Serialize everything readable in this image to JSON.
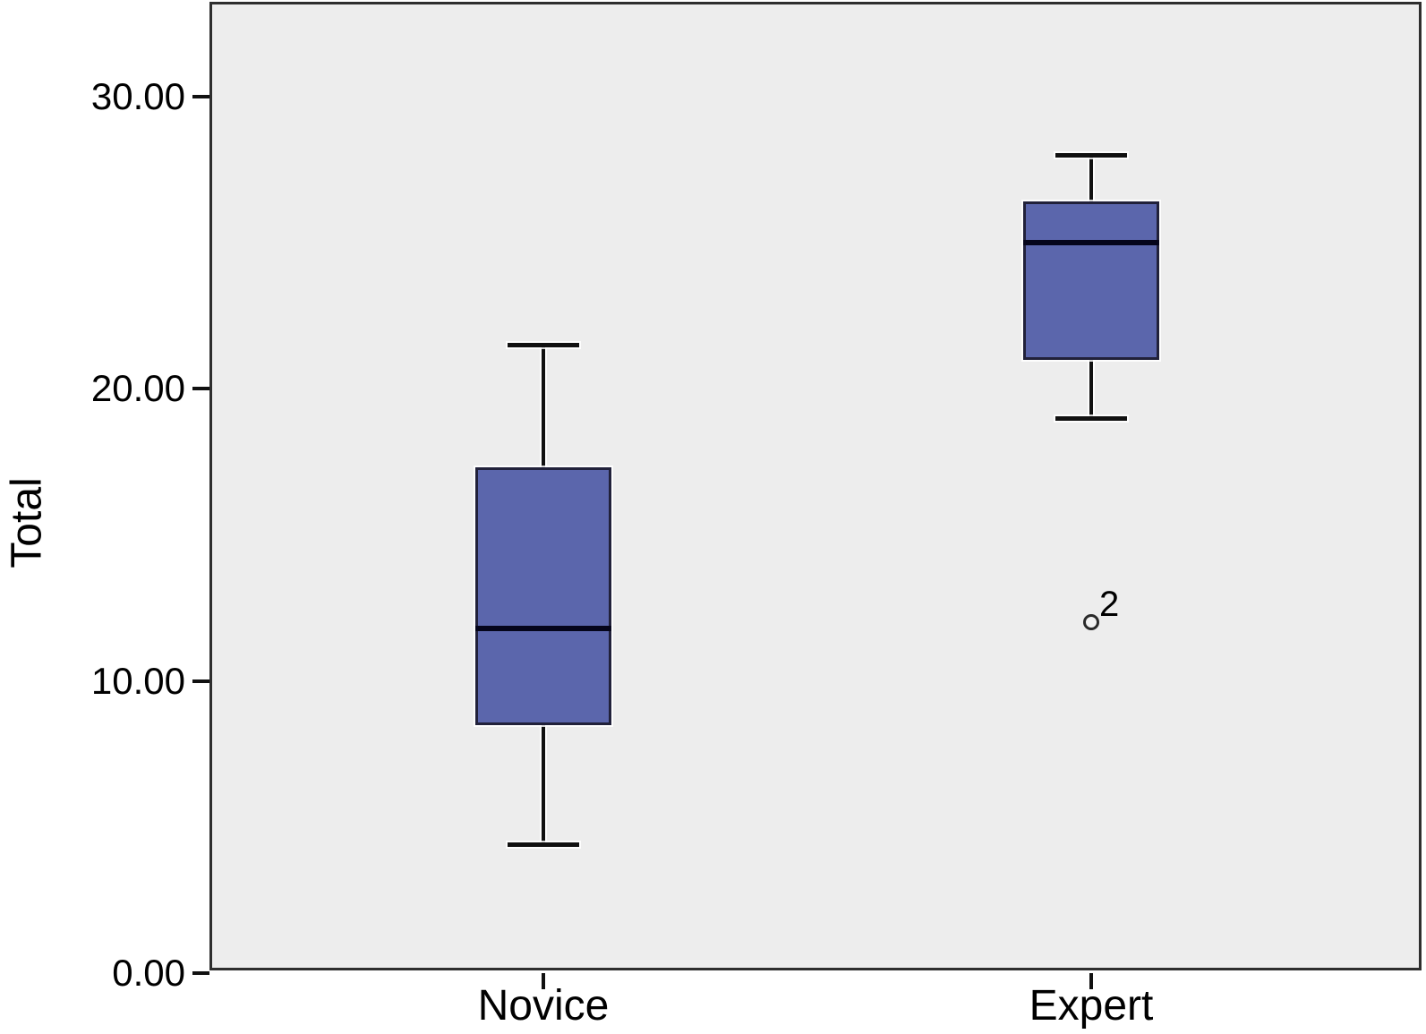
{
  "chart_data": {
    "type": "boxplot",
    "title": "",
    "xlabel": "",
    "ylabel": "Total",
    "ylim": [
      0,
      33.25
    ],
    "grid": false,
    "legend": null,
    "yticks": [
      {
        "value": 0,
        "label": "0.00"
      },
      {
        "value": 10,
        "label": "10.00"
      },
      {
        "value": 20,
        "label": "20.00"
      },
      {
        "value": 30,
        "label": "30.00"
      }
    ],
    "categories": [
      "Novice",
      "Expert"
    ],
    "series": [
      {
        "name": "Novice",
        "whisker_low": 4.4,
        "q1": 8.5,
        "median": 11.8,
        "q3": 17.3,
        "whisker_high": 21.5,
        "outliers": []
      },
      {
        "name": "Expert",
        "whisker_low": 19.0,
        "q1": 21.0,
        "median": 25.0,
        "q3": 26.4,
        "whisker_high": 28.0,
        "outliers": [
          {
            "value": 12.0,
            "label": "2"
          }
        ]
      }
    ],
    "colors": {
      "box_fill": "#5b66ac",
      "box_border": "#21213a",
      "median": "#05051b",
      "whisker": "#111111",
      "plot_bg": "#ededed",
      "frame": "#2e2e2e",
      "text": "#000000"
    }
  }
}
